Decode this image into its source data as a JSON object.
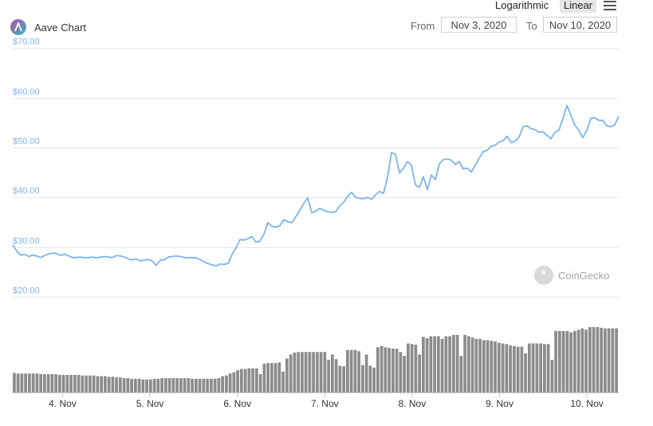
{
  "header": {
    "title": "Aave Chart",
    "scale_log": "Logarithmic",
    "scale_linear": "Linear",
    "from_label": "From",
    "from_value": "Nov 3, 2020",
    "to_label": "To",
    "to_value": "Nov 10, 2020",
    "watermark": "CoinGecko",
    "logo_icon": "aave-logo-icon",
    "menu_icon": "hamburger-menu-icon"
  },
  "colors": {
    "line": "#7cb5ec",
    "volume": "#8c8c8c",
    "grid": "#e6e6e6",
    "axis_label": "#7cb5ec",
    "active_scale_bg": "#e6e6e6"
  },
  "chart_data": [
    {
      "type": "line",
      "title": "",
      "xlabel": "",
      "ylabel": "",
      "y_ticks": [
        "$20.00",
        "$30.00",
        "$40.00",
        "$50.00",
        "$60.00",
        "$70.00"
      ],
      "x_ticks": [
        "4. Nov",
        "5. Nov",
        "6. Nov",
        "7. Nov",
        "8. Nov",
        "9. Nov",
        "10. Nov"
      ],
      "ylim": [
        20,
        72
      ],
      "x_range": [
        "Nov 3, 2020 ~20:00",
        "Nov 10, 2020 ~11:00"
      ],
      "grid": true,
      "legend": "none",
      "series": [
        {
          "values": [
            30.5,
            29.2,
            28.4,
            28.5,
            28.1,
            28.4,
            28.2,
            27.9,
            28.3,
            28.6,
            28.8,
            28.7,
            28.3,
            28.6,
            28.2,
            27.9,
            27.9,
            28.0,
            27.8,
            27.9,
            28.0,
            27.8,
            28.0,
            28.1,
            28.0,
            27.9,
            28.3,
            28.2,
            28.0,
            27.6,
            27.4,
            27.6,
            27.2,
            27.4,
            27.5,
            27.2,
            26.3,
            27.4,
            27.4,
            28.0,
            28.1,
            28.2,
            28.1,
            27.9,
            27.8,
            27.9,
            27.8,
            27.5,
            27.0,
            26.7,
            26.4,
            26.2,
            26.6,
            26.5,
            26.7,
            28.5,
            29.8,
            31.5,
            31.4,
            31.7,
            32.1,
            31.0,
            31.2,
            32.6,
            34.9,
            34.2,
            34.0,
            34.3,
            35.5,
            35.1,
            34.9,
            36.1,
            37.4,
            38.8,
            39.9,
            36.9,
            37.2,
            37.8,
            37.4,
            37.1,
            37.0,
            37.1,
            38.3,
            39.0,
            40.2,
            41.0,
            40.0,
            39.8,
            39.7,
            40.0,
            39.6,
            40.5,
            41.2,
            40.8,
            44.0,
            49.0,
            48.7,
            44.9,
            45.8,
            47.2,
            46.5,
            42.5,
            42.0,
            44.2,
            41.5,
            44.5,
            43.6,
            46.7,
            47.6,
            47.7,
            47.5,
            46.6,
            47.2,
            45.7,
            45.9,
            45.1,
            46.4,
            47.9,
            49.2,
            49.5,
            50.3,
            50.5,
            51.1,
            51.4,
            52.3,
            51.0,
            51.3,
            52.1,
            54.2,
            54.4,
            53.8,
            53.6,
            53.1,
            53.2,
            52.5,
            51.8,
            53.1,
            53.5,
            55.9,
            58.5,
            56.5,
            54.5,
            53.5,
            52.0,
            53.5,
            55.9,
            56.0,
            55.5,
            55.5,
            54.4,
            54.2,
            54.6,
            56.3
          ]
        }
      ]
    },
    {
      "type": "bar",
      "title": "",
      "legend": "none",
      "volume_relative": [
        0.3,
        0.29,
        0.29,
        0.29,
        0.29,
        0.29,
        0.29,
        0.28,
        0.28,
        0.28,
        0.28,
        0.28,
        0.27,
        0.27,
        0.27,
        0.27,
        0.27,
        0.27,
        0.26,
        0.26,
        0.26,
        0.26,
        0.25,
        0.25,
        0.25,
        0.24,
        0.24,
        0.23,
        0.23,
        0.22,
        0.22,
        0.21,
        0.21,
        0.21,
        0.2,
        0.2,
        0.2,
        0.21,
        0.21,
        0.22,
        0.22,
        0.22,
        0.22,
        0.22,
        0.22,
        0.22,
        0.22,
        0.21,
        0.21,
        0.21,
        0.21,
        0.21,
        0.21,
        0.21,
        0.22,
        0.25,
        0.26,
        0.29,
        0.31,
        0.34,
        0.36,
        0.36,
        0.37,
        0.37,
        0.37,
        0.28,
        0.44,
        0.45,
        0.45,
        0.45,
        0.46,
        0.32,
        0.52,
        0.58,
        0.61,
        0.62,
        0.62,
        0.62,
        0.62,
        0.62,
        0.62,
        0.62,
        0.62,
        0.5,
        0.58,
        0.51,
        0.41,
        0.4,
        0.65,
        0.65,
        0.65,
        0.63,
        0.42,
        0.58,
        0.41,
        0.38,
        0.69,
        0.71,
        0.69,
        0.68,
        0.67,
        0.67,
        0.62,
        0.56,
        0.75,
        0.74,
        0.73,
        0.58,
        0.85,
        0.83,
        0.86,
        0.86,
        0.86,
        0.82,
        0.86,
        0.86,
        0.88,
        0.88,
        0.56,
        0.88,
        0.86,
        0.84,
        0.82,
        0.82,
        0.8,
        0.8,
        0.79,
        0.78,
        0.76,
        0.75,
        0.74,
        0.72,
        0.71,
        0.7,
        0.7,
        0.6,
        0.75,
        0.75,
        0.75,
        0.75,
        0.74,
        0.74,
        0.5,
        0.94,
        0.94,
        0.94,
        0.94,
        0.92,
        0.94,
        0.96,
        0.98,
        0.96,
        1.0,
        1.0,
        1.0,
        0.99,
        0.98,
        0.98,
        0.98,
        0.98
      ]
    }
  ]
}
